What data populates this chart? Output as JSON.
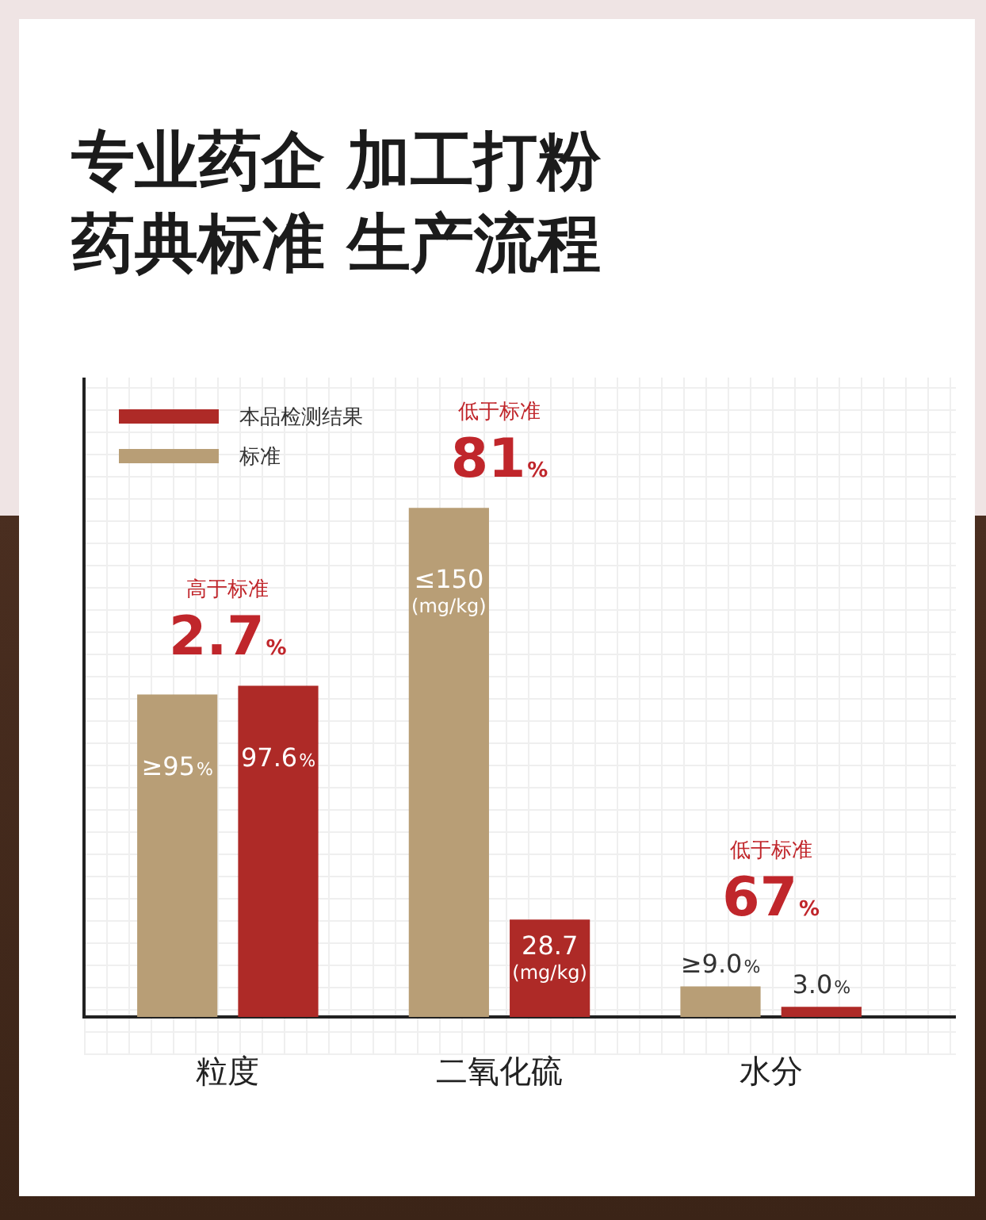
{
  "chart_data": {
    "type": "bar",
    "title": "专业药企 加工打粉药典标准 生产流程",
    "categories": [
      "粒度",
      "二氧化硫",
      "水分"
    ],
    "series": [
      {
        "name": "标准",
        "color": "#b89e76",
        "values": [
          95,
          150,
          9.0
        ],
        "value_labels": [
          "≥95%",
          "≤150 (mg/kg)",
          "≥9.0%"
        ]
      },
      {
        "name": "本品检测结果",
        "color": "#ae2a27",
        "values": [
          97.6,
          28.7,
          3.0
        ],
        "value_labels": [
          "97.6%",
          "28.7 (mg/kg)",
          "3.0%"
        ]
      }
    ],
    "annotations": [
      "高于标准 2.7%",
      "低于标准 81%",
      "低于标准 67%"
    ],
    "tick_labels": "x",
    "legend": "top left"
  }
}
